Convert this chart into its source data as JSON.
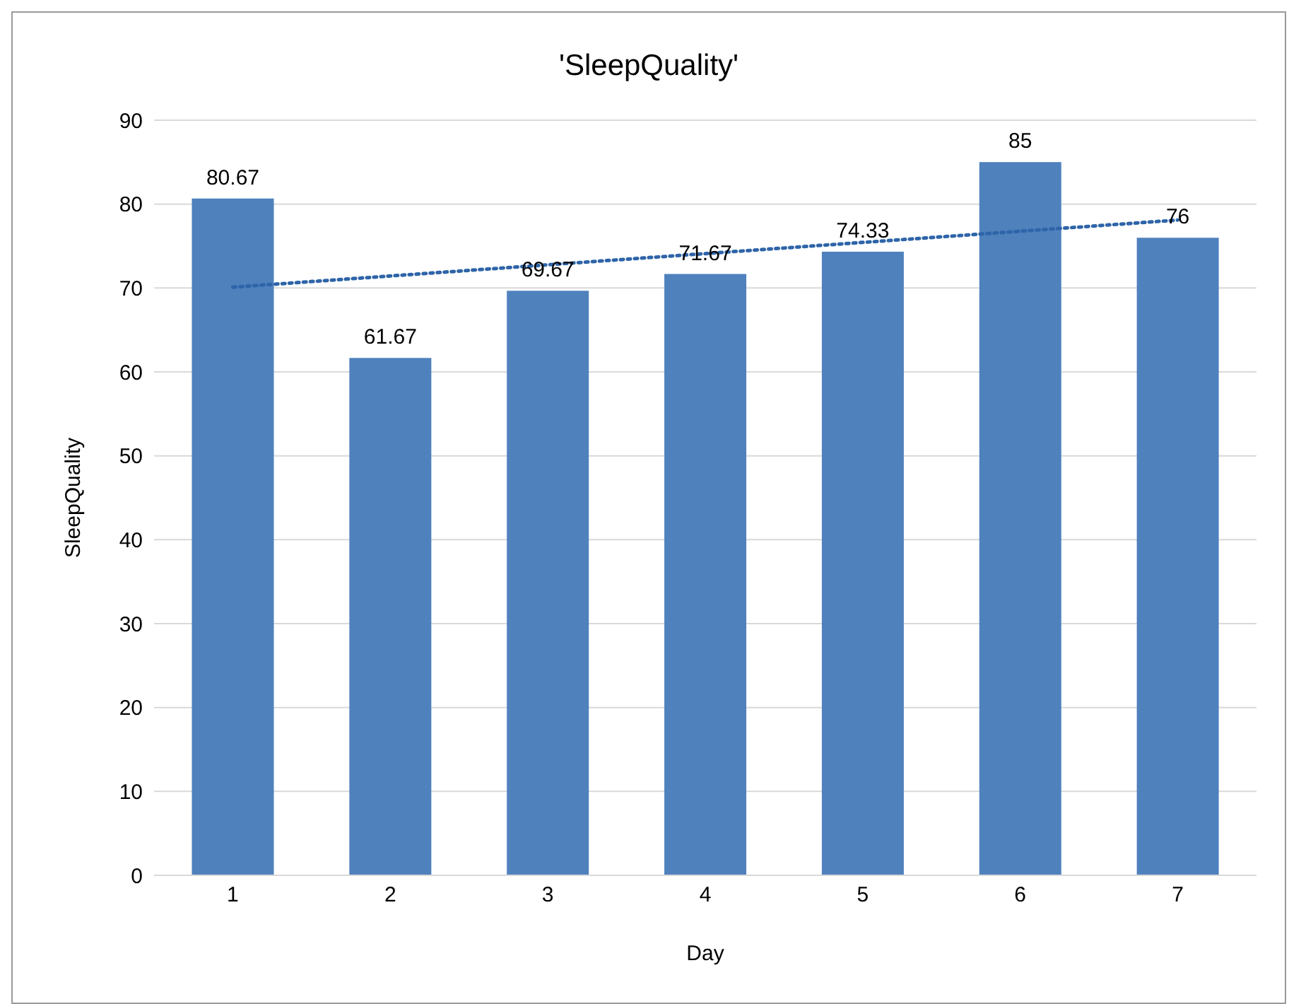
{
  "chart_data": {
    "type": "bar",
    "title": "'SleepQuality'",
    "xlabel": "Day",
    "ylabel": "SleepQuality",
    "categories": [
      "1",
      "2",
      "3",
      "4",
      "5",
      "6",
      "7"
    ],
    "series": [
      {
        "color": "#4f81bd",
        "data_labels": true,
        "values": [
          80.67,
          61.67,
          69.67,
          71.67,
          74.33,
          85,
          76
        ]
      },
      {
        "type": "line",
        "color": "#2e64a8",
        "line_style": "dotted",
        "marker": "none",
        "x": [
          "1",
          "7"
        ],
        "values": [
          70.1,
          78.1
        ]
      }
    ],
    "ylim": [
      0,
      90
    ],
    "yticks": [
      0,
      10,
      20,
      30,
      40,
      50,
      60,
      70,
      80,
      90
    ],
    "grid": "y",
    "legend": false
  }
}
